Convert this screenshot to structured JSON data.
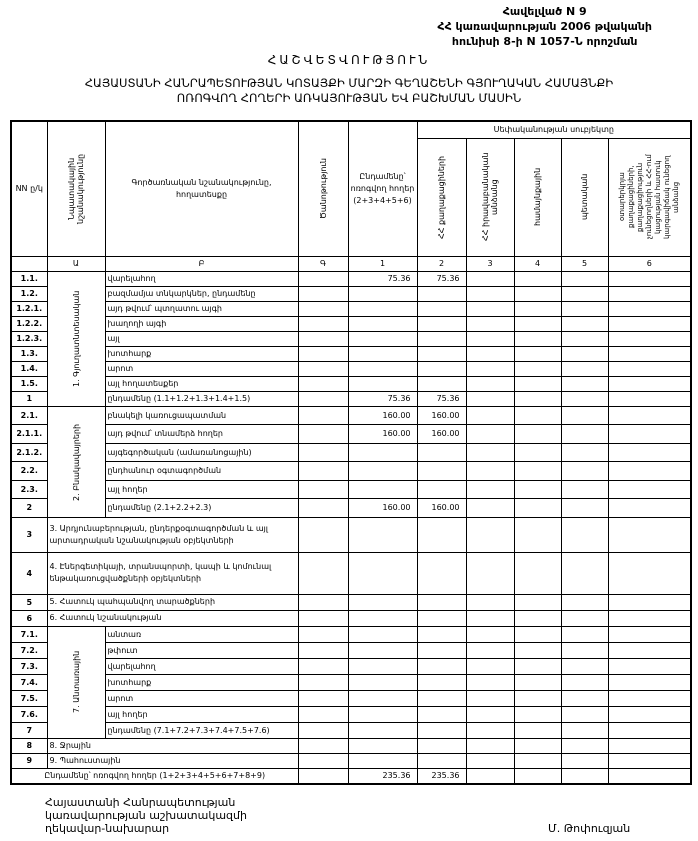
{
  "annex": {
    "line1": "Հավելված N 9",
    "line2": "ՀՀ կառավարության 2006 թվականի",
    "line3": "հունիսի 8-ի N 1057-Ն որոշման"
  },
  "title": "ՀԱՇՎԵՏՎՈՒԹՅՈՒՆ",
  "subtitle": {
    "line1": "ՀԱՅԱՍՏԱՆԻ ՀԱՆՐԱՊԵՏՈՒԹՅԱՆ ԿՈՏԱՅՔԻ ՄԱՐԶԻ ԳԵՂԱՇԵՆԻ ԳՅՈՒՂԱԿԱՆ ՀԱՄԱՅՆՔԻ",
    "line2": "ՈՌՈԳՎՈՂ ՀՈՂԵՐԻ ԱՌԿԱՅՈՒԹՅԱՆ ԵՎ ԲԱՇԽՄԱՆ ՄԱՍԻՆ"
  },
  "table": {
    "headers": {
      "nn": "NN ը/կ",
      "purpose": "Նպատակային նշանակությունը",
      "function": "Գործառնական նշանակությունը, հողատեսքը",
      "note": "Ծանոթություն",
      "total": "Ընդամենը՝ ոռոգվող հողեր (2+3+4+5+6)",
      "ownership": "Սեփականության սուբյեկտը",
      "c2": "ՀՀ քաղաքացիների",
      "c3": "ՀՀ իրավաբանական անձանց",
      "c4": "համայնքային",
      "c5": "պետական",
      "c6": "օտարերկրյա քաղաքացիների, քաղաքացիություն չունեցողների և ՀՀ-ում կացության հատուկ կարգավիճակ ունեցող անձանց"
    },
    "letters": [
      "",
      "Ա",
      "Բ",
      "Գ",
      "1",
      "2",
      "3",
      "4",
      "5",
      "6"
    ],
    "groups": [
      {
        "label": "1. Գյուղատնտեսական",
        "rows": [
          {
            "num": "1.1.",
            "label": "վարելահող",
            "values": [
              "",
              "75.36",
              "75.36",
              "",
              "",
              "",
              ""
            ]
          },
          {
            "num": "1.2.",
            "label": "բազմամյա տնկարկներ, ընդամենը",
            "values": [
              "",
              "",
              "",
              "",
              "",
              "",
              ""
            ]
          },
          {
            "num": "1.2.1.",
            "label": "այդ թվում՝          պտղատու այգի",
            "values": [
              "",
              "",
              "",
              "",
              "",
              "",
              ""
            ]
          },
          {
            "num": "1.2.2.",
            "label": "                              խաղողի այգի",
            "values": [
              "",
              "",
              "",
              "",
              "",
              "",
              ""
            ]
          },
          {
            "num": "1.2.3.",
            "label": "այլ",
            "values": [
              "",
              "",
              "",
              "",
              "",
              "",
              ""
            ]
          },
          {
            "num": "1.3.",
            "label": "խոտհարք",
            "values": [
              "",
              "",
              "",
              "",
              "",
              "",
              ""
            ]
          },
          {
            "num": "1.4.",
            "label": "արոտ",
            "values": [
              "",
              "",
              "",
              "",
              "",
              "",
              ""
            ]
          },
          {
            "num": "1.5.",
            "label": "այլ հողատեսքեր",
            "values": [
              "",
              "",
              "",
              "",
              "",
              "",
              ""
            ]
          },
          {
            "num": "1",
            "label": "ընդամենը (1.1+1.2+1.3+1.4+1.5)",
            "values": [
              "",
              "75.36",
              "75.36",
              "",
              "",
              "",
              ""
            ]
          }
        ]
      },
      {
        "label": "2. Բնակավայրերի",
        "rows": [
          {
            "num": "2.1.",
            "label": "բնակելի կառուցապատման",
            "values": [
              "",
              "160.00",
              "160.00",
              "",
              "",
              "",
              ""
            ]
          },
          {
            "num": "2.1.1.",
            "label": "այդ թվում՝ տնամերձ հողեր",
            "values": [
              "",
              "160.00",
              "160.00",
              "",
              "",
              "",
              ""
            ]
          },
          {
            "num": "2.1.2.",
            "label": "այգեգործական (ամառանոցային)",
            "values": [
              "",
              "",
              "",
              "",
              "",
              "",
              ""
            ]
          },
          {
            "num": "2.2.",
            "label": "ընդհանուր օգտագործման",
            "values": [
              "",
              "",
              "",
              "",
              "",
              "",
              ""
            ]
          },
          {
            "num": "2.3.",
            "label": "այլ հողեր",
            "values": [
              "",
              "",
              "",
              "",
              "",
              "",
              ""
            ]
          },
          {
            "num": "2",
            "label": "ընդամենը (2.1+2.2+2.3)",
            "values": [
              "",
              "160.00",
              "160.00",
              "",
              "",
              "",
              ""
            ]
          }
        ]
      }
    ],
    "full_rows": [
      {
        "num": "3",
        "label": "3. Արդյունաբերության, ընդերքօգտագործման և այլ արտադրական նշանակության օբյեկտների",
        "values": [
          "",
          "",
          "",
          "",
          "",
          "",
          ""
        ]
      },
      {
        "num": "4",
        "label": "4. Էներգետիկայի, տրանսպորտի, կապի և կոմունալ ենթակառուցվածքների օբյեկտների",
        "values": [
          "",
          "",
          "",
          "",
          "",
          "",
          ""
        ]
      },
      {
        "num": "5",
        "label": "5. Հատուկ պահպանվող տարածքների",
        "values": [
          "",
          "",
          "",
          "",
          "",
          "",
          ""
        ]
      },
      {
        "num": "6",
        "label": "6. Հատուկ նշանակության",
        "values": [
          "",
          "",
          "",
          "",
          "",
          "",
          ""
        ]
      }
    ],
    "group7": {
      "label": "7. Անտառային",
      "rows": [
        {
          "num": "7.1.",
          "label": "անտառ",
          "values": [
            "",
            "",
            "",
            "",
            "",
            "",
            ""
          ]
        },
        {
          "num": "7.2.",
          "label": "թփուտ",
          "values": [
            "",
            "",
            "",
            "",
            "",
            "",
            ""
          ]
        },
        {
          "num": "7.3.",
          "label": "վարելահող",
          "values": [
            "",
            "",
            "",
            "",
            "",
            "",
            ""
          ]
        },
        {
          "num": "7.4.",
          "label": "խոտհարք",
          "values": [
            "",
            "",
            "",
            "",
            "",
            "",
            ""
          ]
        },
        {
          "num": "7.5.",
          "label": "արոտ",
          "values": [
            "",
            "",
            "",
            "",
            "",
            "",
            ""
          ]
        },
        {
          "num": "7.6.",
          "label": "այլ հողեր",
          "values": [
            "",
            "",
            "",
            "",
            "",
            "",
            ""
          ]
        },
        {
          "num": "7",
          "label": "ընդամենը (7.1+7.2+7.3+7.4+7.5+7.6)",
          "values": [
            "",
            "",
            "",
            "",
            "",
            "",
            ""
          ]
        }
      ]
    },
    "tail_rows": [
      {
        "num": "8",
        "label": "8. Ջրային",
        "values": [
          "",
          "",
          "",
          "",
          "",
          "",
          ""
        ]
      },
      {
        "num": "9",
        "label": "9. Պահուստային",
        "values": [
          "",
          "",
          "",
          "",
          "",
          "",
          ""
        ]
      }
    ],
    "grand_total": {
      "label": "Ընդամենը՝ ոռոգվող հողեր (1+2+3+4+5+6+7+8+9)",
      "values": [
        "",
        "235.36",
        "235.36",
        "",
        "",
        "",
        ""
      ]
    }
  },
  "footer": {
    "line1": "Հայաստանի Հանրապետության",
    "line2": "կառավարության աշխատակազմի",
    "line3": "ղեկավար-նախարար",
    "signatory": "Մ. Թոփուզյան"
  }
}
